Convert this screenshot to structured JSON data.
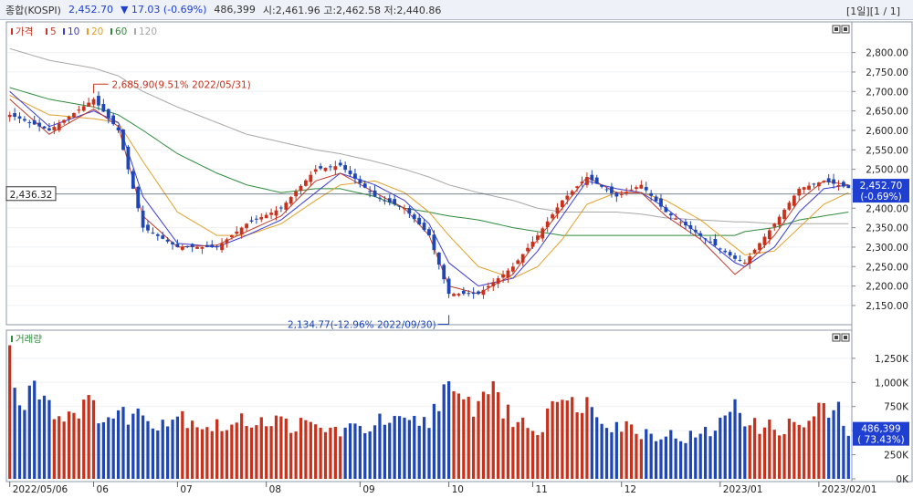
{
  "header": {
    "name": "종합(KOSPI)",
    "price": "2,452.70",
    "change": "▼ 17.03 (-0.69%)",
    "volume": "486,399",
    "ohl": "시:2,461.96 고:2,462.58 저:2,440.86",
    "period_info": "[1일][1 / 1]"
  },
  "colors": {
    "up": "#c8321c",
    "down": "#1e46b4",
    "ma5": "#c0392b",
    "ma10": "#3b3bd6",
    "ma20": "#e0a02a",
    "ma60": "#2e8b3c",
    "ma120": "#a8a8a8"
  },
  "chart_data": [
    {
      "type": "candlestick",
      "legend": [
        {
          "label": "가격",
          "color": "#c8321c"
        },
        {
          "label": "5",
          "color": "#c0392b"
        },
        {
          "label": "10",
          "color": "#3b3bd6"
        },
        {
          "label": "20",
          "color": "#e0a02a"
        },
        {
          "label": "60",
          "color": "#2e8b3c"
        },
        {
          "label": "120",
          "color": "#a8a8a8"
        }
      ],
      "ylim": [
        2110,
        2860
      ],
      "y_ticks": [
        "2,800.00",
        "2,750.00",
        "2,700.00",
        "2,650.00",
        "2,600.00",
        "2,550.00",
        "2,500.00",
        "2,450.00",
        "2,400.00",
        "2,350.00",
        "2,300.00",
        "2,250.00",
        "2,200.00",
        "2,150.00"
      ],
      "y_tick_values": [
        2800,
        2750,
        2700,
        2650,
        2600,
        2550,
        2500,
        2450,
        2400,
        2350,
        2300,
        2250,
        2200,
        2150
      ],
      "reference_line": {
        "value": 2436.32,
        "label": "2,436.32"
      },
      "last_price_label": [
        "2,452.70",
        "(-0.69%)"
      ],
      "annotations": [
        {
          "text": "2,685.90(9.51% 2022/05/31)",
          "value": 2685.9,
          "index": 17
        },
        {
          "text": "2,134.77(-12.96% 2022/09/30)",
          "value": 2134.77,
          "index": 89
        }
      ],
      "close_path": [
        [
          0,
          2640
        ],
        [
          8,
          2600
        ],
        [
          17,
          2680
        ],
        [
          22,
          2600
        ],
        [
          27,
          2350
        ],
        [
          34,
          2300
        ],
        [
          42,
          2300
        ],
        [
          48,
          2360
        ],
        [
          55,
          2400
        ],
        [
          62,
          2500
        ],
        [
          67,
          2510
        ],
        [
          74,
          2430
        ],
        [
          80,
          2400
        ],
        [
          85,
          2330
        ],
        [
          89,
          2180
        ],
        [
          95,
          2180
        ],
        [
          102,
          2250
        ],
        [
          107,
          2330
        ],
        [
          112,
          2420
        ],
        [
          117,
          2480
        ],
        [
          123,
          2430
        ],
        [
          128,
          2460
        ],
        [
          133,
          2390
        ],
        [
          140,
          2330
        ],
        [
          147,
          2270
        ],
        [
          149,
          2260
        ],
        [
          155,
          2360
        ],
        [
          160,
          2450
        ],
        [
          165,
          2470
        ],
        [
          170,
          2452
        ]
      ],
      "ma5_path": [
        [
          0,
          2680
        ],
        [
          8,
          2590
        ],
        [
          17,
          2655
        ],
        [
          22,
          2610
        ],
        [
          27,
          2380
        ],
        [
          34,
          2300
        ],
        [
          42,
          2305
        ],
        [
          48,
          2340
        ],
        [
          55,
          2380
        ],
        [
          62,
          2470
        ],
        [
          67,
          2490
        ],
        [
          74,
          2440
        ],
        [
          80,
          2400
        ],
        [
          85,
          2330
        ],
        [
          89,
          2200
        ],
        [
          95,
          2180
        ],
        [
          102,
          2230
        ],
        [
          107,
          2320
        ],
        [
          112,
          2400
        ],
        [
          117,
          2480
        ],
        [
          123,
          2440
        ],
        [
          128,
          2440
        ],
        [
          133,
          2380
        ],
        [
          140,
          2320
        ],
        [
          147,
          2230
        ],
        [
          149,
          2250
        ],
        [
          155,
          2330
        ],
        [
          160,
          2420
        ],
        [
          165,
          2470
        ],
        [
          170,
          2460
        ]
      ],
      "ma10_path": [
        [
          0,
          2700
        ],
        [
          8,
          2610
        ],
        [
          17,
          2650
        ],
        [
          22,
          2620
        ],
        [
          27,
          2430
        ],
        [
          34,
          2310
        ],
        [
          42,
          2300
        ],
        [
          48,
          2330
        ],
        [
          55,
          2370
        ],
        [
          62,
          2440
        ],
        [
          67,
          2490
        ],
        [
          74,
          2460
        ],
        [
          80,
          2420
        ],
        [
          85,
          2360
        ],
        [
          89,
          2260
        ],
        [
          95,
          2200
        ],
        [
          102,
          2220
        ],
        [
          107,
          2290
        ],
        [
          112,
          2380
        ],
        [
          117,
          2470
        ],
        [
          123,
          2450
        ],
        [
          128,
          2440
        ],
        [
          133,
          2400
        ],
        [
          140,
          2330
        ],
        [
          147,
          2260
        ],
        [
          149,
          2250
        ],
        [
          155,
          2300
        ],
        [
          160,
          2390
        ],
        [
          165,
          2450
        ],
        [
          170,
          2460
        ]
      ],
      "ma20_path": [
        [
          0,
          2690
        ],
        [
          8,
          2640
        ],
        [
          17,
          2630
        ],
        [
          22,
          2620
        ],
        [
          27,
          2520
        ],
        [
          34,
          2390
        ],
        [
          42,
          2330
        ],
        [
          48,
          2330
        ],
        [
          55,
          2360
        ],
        [
          62,
          2420
        ],
        [
          67,
          2460
        ],
        [
          74,
          2470
        ],
        [
          80,
          2440
        ],
        [
          85,
          2390
        ],
        [
          89,
          2330
        ],
        [
          95,
          2250
        ],
        [
          102,
          2220
        ],
        [
          107,
          2250
        ],
        [
          112,
          2320
        ],
        [
          117,
          2410
        ],
        [
          123,
          2440
        ],
        [
          128,
          2440
        ],
        [
          133,
          2420
        ],
        [
          140,
          2370
        ],
        [
          147,
          2300
        ],
        [
          149,
          2280
        ],
        [
          155,
          2290
        ],
        [
          160,
          2350
        ],
        [
          165,
          2410
        ],
        [
          170,
          2440
        ]
      ],
      "ma60_path": [
        [
          0,
          2710
        ],
        [
          8,
          2680
        ],
        [
          17,
          2660
        ],
        [
          22,
          2640
        ],
        [
          27,
          2600
        ],
        [
          34,
          2540
        ],
        [
          42,
          2490
        ],
        [
          48,
          2460
        ],
        [
          55,
          2440
        ],
        [
          62,
          2450
        ],
        [
          67,
          2450
        ],
        [
          74,
          2430
        ],
        [
          80,
          2400
        ],
        [
          85,
          2390
        ],
        [
          89,
          2380
        ],
        [
          95,
          2370
        ],
        [
          102,
          2350
        ],
        [
          107,
          2340
        ],
        [
          112,
          2330
        ],
        [
          117,
          2330
        ],
        [
          123,
          2330
        ],
        [
          128,
          2330
        ],
        [
          133,
          2330
        ],
        [
          140,
          2330
        ],
        [
          147,
          2330
        ],
        [
          149,
          2340
        ],
        [
          155,
          2350
        ],
        [
          160,
          2370
        ],
        [
          165,
          2380
        ],
        [
          170,
          2390
        ]
      ],
      "ma120_path": [
        [
          0,
          2810
        ],
        [
          8,
          2780
        ],
        [
          17,
          2760
        ],
        [
          22,
          2740
        ],
        [
          27,
          2700
        ],
        [
          34,
          2660
        ],
        [
          42,
          2620
        ],
        [
          48,
          2590
        ],
        [
          55,
          2570
        ],
        [
          62,
          2550
        ],
        [
          67,
          2540
        ],
        [
          74,
          2520
        ],
        [
          80,
          2500
        ],
        [
          85,
          2480
        ],
        [
          89,
          2460
        ],
        [
          95,
          2440
        ],
        [
          102,
          2420
        ],
        [
          107,
          2400
        ],
        [
          112,
          2390
        ],
        [
          117,
          2390
        ],
        [
          123,
          2390
        ],
        [
          128,
          2385
        ],
        [
          133,
          2375
        ],
        [
          140,
          2370
        ],
        [
          147,
          2365
        ],
        [
          149,
          2365
        ],
        [
          155,
          2360
        ],
        [
          160,
          2360
        ],
        [
          165,
          2360
        ],
        [
          170,
          2360
        ]
      ]
    },
    {
      "type": "bar",
      "legend": [
        {
          "label": "거래량",
          "color": "#2e8b3c"
        }
      ],
      "ylim": [
        0,
        1400
      ],
      "y_ticks": [
        "1,250K",
        "1,000K",
        "750K",
        "500K",
        "250K",
        "0K"
      ],
      "y_tick_values": [
        1250,
        1000,
        750,
        500,
        250,
        0
      ],
      "last_volume_label": [
        "486,399",
        "( 73.43%)"
      ],
      "x_labels": [
        {
          "label": "2022/05/06",
          "index": 0
        },
        {
          "label": "06",
          "index": 17
        },
        {
          "label": "07",
          "index": 34
        },
        {
          "label": "08",
          "index": 52
        },
        {
          "label": "09",
          "index": 71
        },
        {
          "label": "10",
          "index": 89
        },
        {
          "label": "11",
          "index": 106
        },
        {
          "label": "12",
          "index": 124
        },
        {
          "label": "2023/01",
          "index": 144
        },
        {
          "label": "2023/02/01",
          "index": 164
        }
      ],
      "volume_path": [
        [
          0,
          1350
        ],
        [
          2,
          700
        ],
        [
          5,
          1100
        ],
        [
          10,
          650
        ],
        [
          15,
          800
        ],
        [
          20,
          650
        ],
        [
          25,
          700
        ],
        [
          30,
          620
        ],
        [
          35,
          680
        ],
        [
          40,
          560
        ],
        [
          45,
          560
        ],
        [
          50,
          650
        ],
        [
          55,
          600
        ],
        [
          60,
          560
        ],
        [
          65,
          520
        ],
        [
          70,
          520
        ],
        [
          75,
          600
        ],
        [
          80,
          580
        ],
        [
          85,
          620
        ],
        [
          88,
          1000
        ],
        [
          90,
          820
        ],
        [
          95,
          780
        ],
        [
          98,
          1100
        ],
        [
          100,
          700
        ],
        [
          105,
          560
        ],
        [
          108,
          520
        ],
        [
          110,
          1000
        ],
        [
          113,
          740
        ],
        [
          115,
          850
        ],
        [
          118,
          770
        ],
        [
          122,
          600
        ],
        [
          125,
          560
        ],
        [
          128,
          500
        ],
        [
          132,
          480
        ],
        [
          136,
          440
        ],
        [
          140,
          450
        ],
        [
          145,
          620
        ],
        [
          147,
          880
        ],
        [
          150,
          560
        ],
        [
          155,
          540
        ],
        [
          158,
          560
        ],
        [
          162,
          600
        ],
        [
          164,
          720
        ],
        [
          168,
          700
        ],
        [
          170,
          486
        ]
      ]
    }
  ]
}
